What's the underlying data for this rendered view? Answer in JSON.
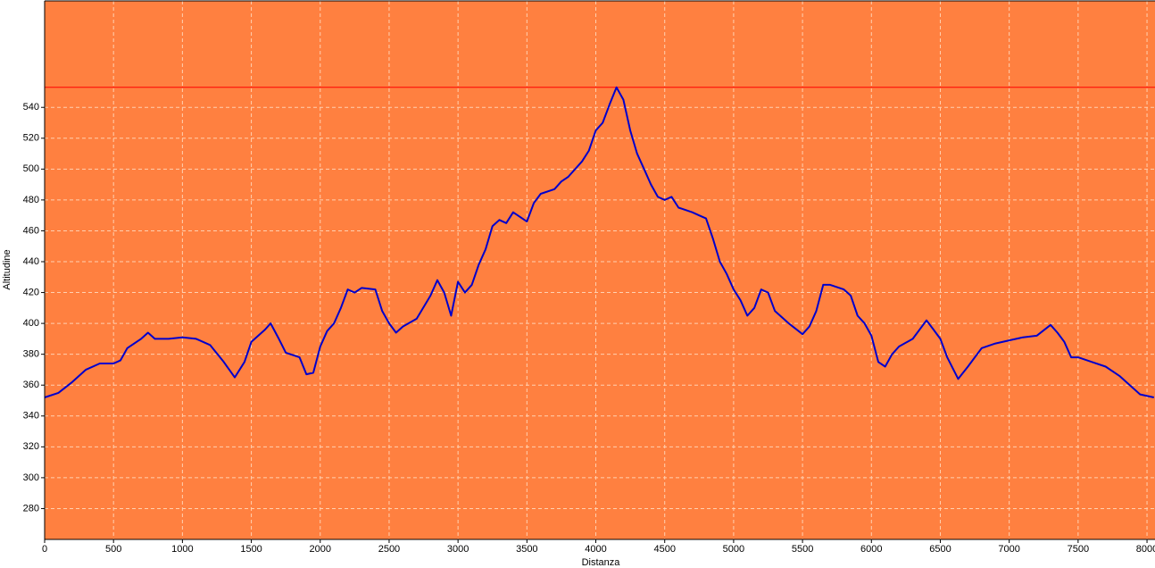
{
  "chart_data": {
    "type": "line",
    "xlabel": "Distanza",
    "ylabel": "Altitudine",
    "x": [
      0,
      100,
      200,
      300,
      400,
      500,
      550,
      600,
      700,
      750,
      800,
      900,
      1000,
      1100,
      1200,
      1300,
      1380,
      1450,
      1500,
      1600,
      1640,
      1700,
      1750,
      1850,
      1900,
      1950,
      2000,
      2050,
      2100,
      2150,
      2200,
      2250,
      2300,
      2400,
      2450,
      2500,
      2550,
      2600,
      2700,
      2800,
      2850,
      2900,
      2950,
      3000,
      3050,
      3100,
      3150,
      3200,
      3250,
      3300,
      3350,
      3400,
      3500,
      3550,
      3600,
      3700,
      3750,
      3800,
      3900,
      3950,
      4000,
      4050,
      4100,
      4150,
      4200,
      4250,
      4300,
      4350,
      4400,
      4450,
      4500,
      4550,
      4600,
      4700,
      4750,
      4800,
      4850,
      4900,
      4950,
      5000,
      5050,
      5100,
      5150,
      5200,
      5250,
      5300,
      5400,
      5500,
      5550,
      5600,
      5650,
      5700,
      5800,
      5850,
      5900,
      5950,
      6000,
      6050,
      6100,
      6150,
      6200,
      6300,
      6400,
      6450,
      6500,
      6550,
      6630,
      6700,
      6800,
      6900,
      7000,
      7100,
      7200,
      7300,
      7350,
      7400,
      7450,
      7500,
      7600,
      7700,
      7800,
      7900,
      7950,
      8050
    ],
    "values": [
      352,
      355,
      362,
      370,
      374,
      374,
      376,
      384,
      390,
      394,
      390,
      390,
      391,
      390,
      386,
      375,
      365,
      375,
      388,
      396,
      400,
      390,
      381,
      378,
      367,
      368,
      385,
      395,
      400,
      410,
      422,
      420,
      423,
      422,
      408,
      400,
      394,
      398,
      403,
      418,
      428,
      420,
      405,
      427,
      420,
      425,
      438,
      448,
      463,
      467,
      465,
      472,
      466,
      478,
      484,
      487,
      492,
      495,
      505,
      512,
      525,
      530,
      542,
      553,
      545,
      525,
      510,
      500,
      490,
      482,
      480,
      482,
      475,
      472,
      470,
      468,
      455,
      440,
      432,
      422,
      415,
      405,
      410,
      422,
      420,
      408,
      400,
      393,
      398,
      408,
      425,
      425,
      422,
      418,
      405,
      400,
      392,
      375,
      372,
      380,
      385,
      390,
      402,
      396,
      390,
      378,
      364,
      372,
      384,
      387,
      389,
      391,
      392,
      399,
      394,
      388,
      378,
      378,
      375,
      372,
      366,
      358,
      354,
      352
    ],
    "color": "#0000cc",
    "reference_line": 553,
    "reference_color": "#ff0000",
    "background": "#ff8040",
    "xlim": [
      0,
      8058
    ],
    "ylim": [
      260,
      609
    ],
    "xticks": [
      0,
      500,
      1000,
      1500,
      2000,
      2500,
      3000,
      3500,
      4000,
      4500,
      5000,
      5500,
      6000,
      6500,
      7000,
      7500,
      8000
    ],
    "yticks": [
      280,
      300,
      320,
      340,
      360,
      380,
      400,
      420,
      440,
      460,
      480,
      500,
      520,
      540
    ],
    "grid": true
  }
}
